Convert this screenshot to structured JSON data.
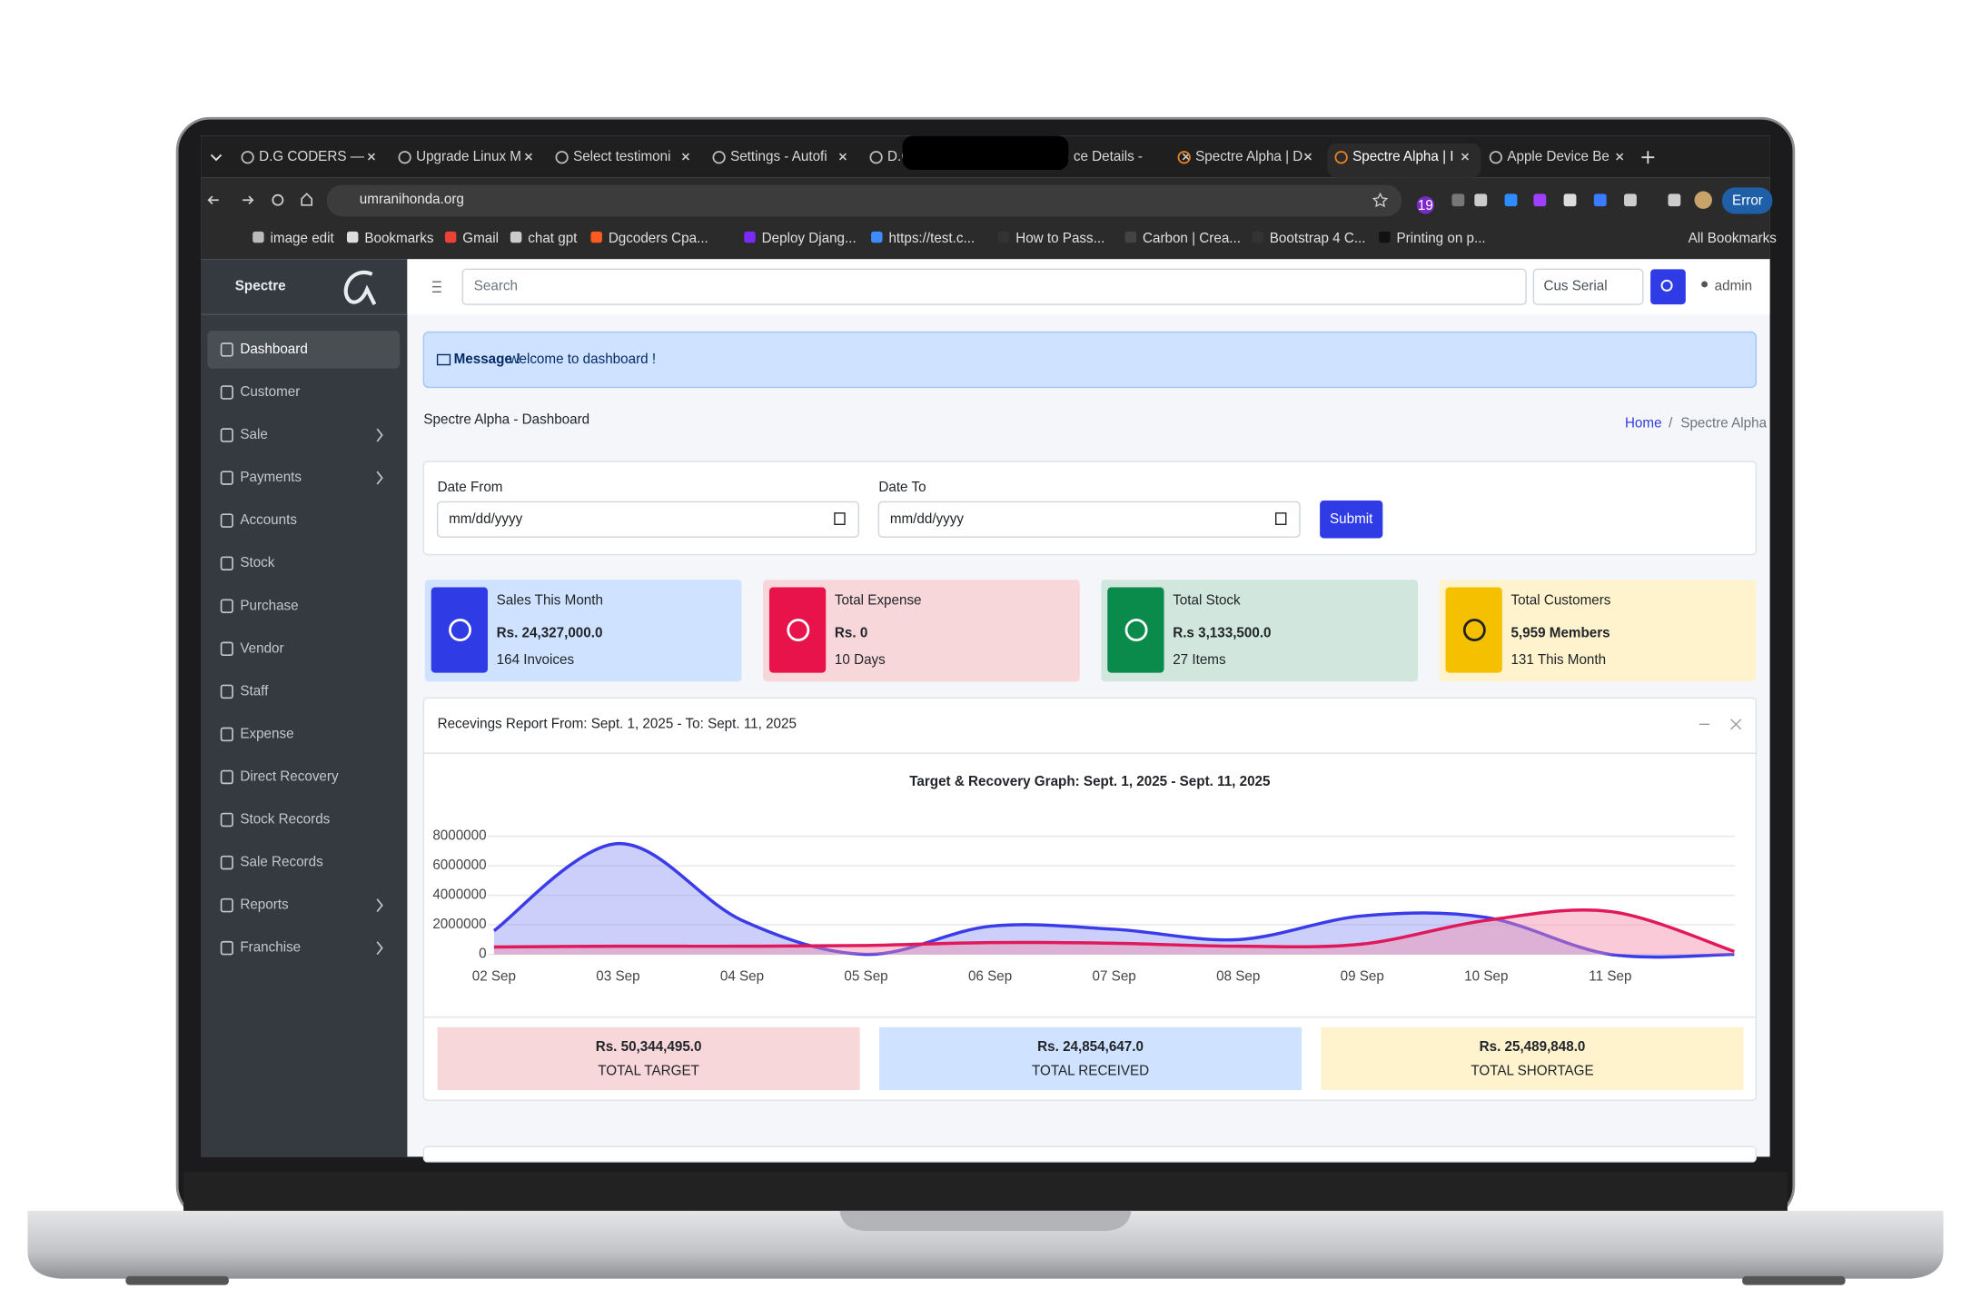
{
  "browser": {
    "tabs": [
      "D.G CODERS —",
      "Upgrade Linux M",
      "Select testimoni",
      "Settings - Autofi",
      "D.C",
      "ce Details -",
      "Spectre Alpha | D",
      "Spectre Alpha | I",
      "Apple Device Be"
    ],
    "url": "umranihonda.org",
    "bookmarks": [
      "image edit",
      "Bookmarks",
      "Gmail",
      "chat gpt",
      "Dgcoders Cpa...",
      "Deploy Djang...",
      "https://test.c...",
      "How to Pass...",
      "Carbon | Crea...",
      "Bootstrap 4 C...",
      "Printing on p..."
    ],
    "all_bookmarks": "All Bookmarks",
    "extension_badge": "19",
    "profile_status": "Error"
  },
  "sidebar": {
    "brand": "Spectre",
    "items": [
      {
        "label": "Dashboard",
        "submenu": false
      },
      {
        "label": "Customer",
        "submenu": false
      },
      {
        "label": "Sale",
        "submenu": true
      },
      {
        "label": "Payments",
        "submenu": true
      },
      {
        "label": "Accounts",
        "submenu": false
      },
      {
        "label": "Stock",
        "submenu": false
      },
      {
        "label": "Purchase",
        "submenu": false
      },
      {
        "label": "Vendor",
        "submenu": false
      },
      {
        "label": "Staff",
        "submenu": false
      },
      {
        "label": "Expense",
        "submenu": false
      },
      {
        "label": "Direct Recovery",
        "submenu": false
      },
      {
        "label": "Stock Records",
        "submenu": false
      },
      {
        "label": "Sale Records",
        "submenu": false
      },
      {
        "label": "Reports",
        "submenu": true
      },
      {
        "label": "Franchise",
        "submenu": true
      }
    ]
  },
  "navbar": {
    "search_placeholder": "Search",
    "serial_placeholder": "Cus Serial",
    "user": "admin"
  },
  "alert": {
    "label": "Message !",
    "text": "welcome to dashboard !"
  },
  "page": {
    "title": "Spectre Alpha - Dashboard",
    "breadcrumb": [
      "Home",
      "Spectre Alpha"
    ],
    "breadcrumb_separator": "/"
  },
  "filter": {
    "date_from_label": "Date From",
    "date_to_label": "Date To",
    "placeholder": "mm/dd/yyyy",
    "submit": "Submit"
  },
  "cards": [
    {
      "title": "Sales This Month",
      "value": "Rs. 24,327,000.0",
      "note": "164 Invoices",
      "color": "#cfe2ff",
      "icon_color": "#2f3ce6"
    },
    {
      "title": "Total Expense",
      "value": "Rs. 0",
      "note": "10 Days",
      "color": "#f8d7da",
      "icon_color": "#e9134b"
    },
    {
      "title": "Total Stock",
      "value": "R.s 3,133,500.0",
      "note": "27 Items",
      "color": "#d1e7dd",
      "icon_color": "#0a8a4b"
    },
    {
      "title": "Total Customers",
      "value": "5,959 Members",
      "note": "131 This Month",
      "color": "#fff3cd",
      "icon_color": "#f5c000"
    }
  ],
  "report": {
    "title": "Recevings Report From: Sept. 1, 2025 - To: Sept. 11, 2025",
    "chart": {
      "type": "area",
      "title": "Target & Recovery Graph: Sept. 1, 2025 - Sept. 11, 2025",
      "categories": [
        "02 Sep",
        "03 Sep",
        "04 Sep",
        "05 Sep",
        "06 Sep",
        "07 Sep",
        "08 Sep",
        "09 Sep",
        "10 Sep",
        "11 Sep",
        null
      ],
      "series": [
        {
          "color": "#3b3bea",
          "fill": "#8c95f2",
          "values": [
            1600000,
            7500000,
            2300000,
            0,
            1900000,
            1700000,
            1000000,
            2600000,
            2500000,
            0,
            0
          ]
        },
        {
          "color": "#e0195a",
          "fill": "#f48aa8",
          "values": [
            500000,
            550000,
            550000,
            600000,
            800000,
            750000,
            550000,
            700000,
            2300000,
            2900000,
            200000
          ]
        }
      ],
      "ylim": [
        0,
        8000000
      ],
      "yticks": [
        0,
        2000000,
        4000000,
        6000000,
        8000000
      ],
      "grid": true
    },
    "totals": [
      {
        "value": "Rs. 50,344,495.0",
        "label": "TOTAL TARGET",
        "color": "#f8d7da"
      },
      {
        "value": "Rs. 24,854,647.0",
        "label": "TOTAL RECEIVED",
        "color": "#cfe2ff"
      },
      {
        "value": "Rs. 25,489,848.0",
        "label": "TOTAL SHORTAGE",
        "color": "#fff3cd"
      }
    ]
  }
}
